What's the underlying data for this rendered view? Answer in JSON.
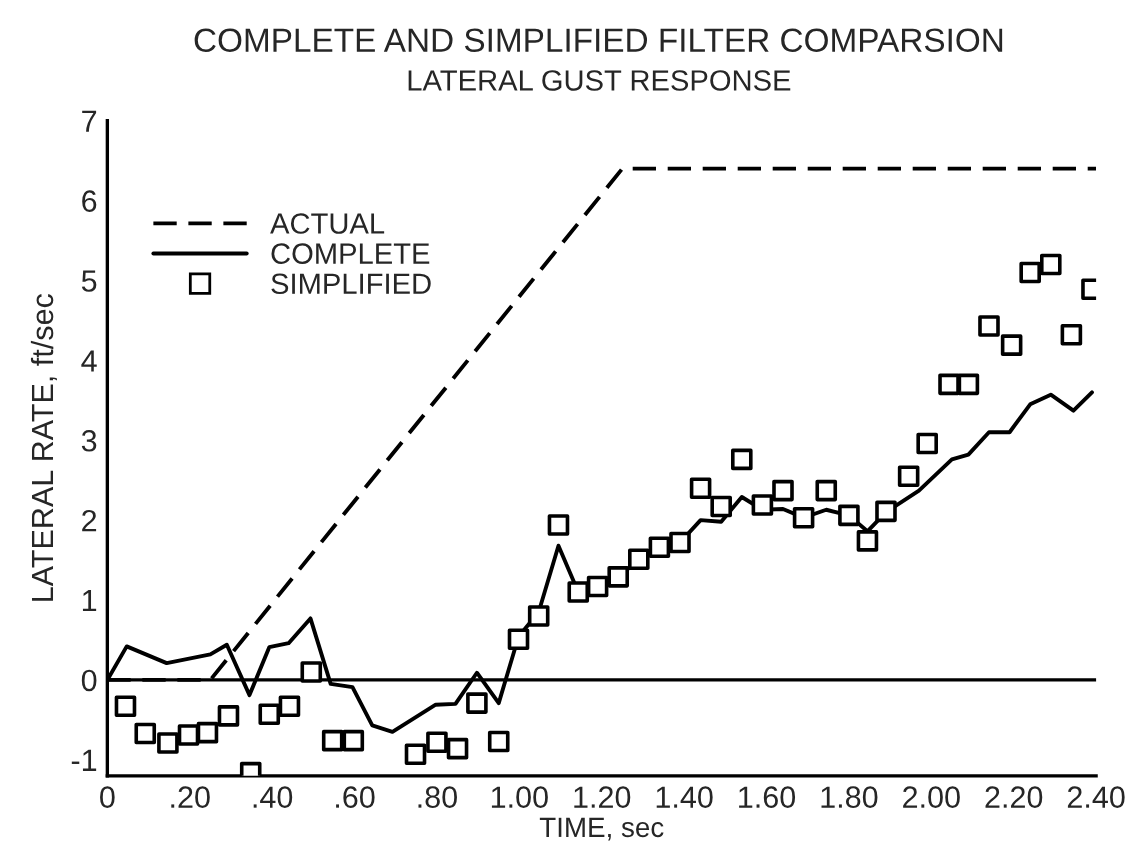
{
  "chart_data": {
    "type": "line",
    "title": "COMPLETE AND SIMPLIFIED FILTER COMPARSION",
    "subtitle": "LATERAL GUST RESPONSE",
    "xlabel": "TIME, sec",
    "ylabel": "LATERAL RATE, ft/sec",
    "xlim": [
      0,
      2.4
    ],
    "ylim": [
      -1.2,
      7
    ],
    "xticks": [
      0,
      {
        "value": 0.2,
        "label": ".20"
      },
      {
        "value": 0.4,
        "label": ".40"
      },
      {
        "value": 0.6,
        "label": ".60"
      },
      {
        "value": 0.8,
        "label": ".80"
      },
      {
        "value": 1.0,
        "label": "1.00"
      },
      {
        "value": 1.2,
        "label": "1.20"
      },
      {
        "value": 1.4,
        "label": "1.40"
      },
      {
        "value": 1.6,
        "label": "1.60"
      },
      {
        "value": 1.8,
        "label": "1.80"
      },
      {
        "value": 2.0,
        "label": "2.00"
      },
      {
        "value": 2.2,
        "label": "2.20"
      },
      {
        "value": 2.4,
        "label": "2.40"
      }
    ],
    "yticks": [
      -1,
      0,
      1,
      2,
      3,
      4,
      5,
      6,
      7
    ],
    "grid": false,
    "legend": "top left",
    "ref_lines": [
      {
        "axis": "y",
        "value": 0,
        "color": "#000000",
        "line_style": "solid"
      }
    ],
    "series": [
      {
        "name": "ACTUAL",
        "color": "#000000",
        "line_style": "dashed",
        "marker": "none",
        "x": [
          0,
          0.25,
          1.25,
          2.4
        ],
        "values": [
          0,
          0,
          6.4,
          6.4
        ]
      },
      {
        "name": "COMPLETE",
        "color": "#000000",
        "line_style": "solid",
        "marker": "none",
        "x": [
          0,
          0.047,
          0.144,
          0.25,
          0.29,
          0.345,
          0.393,
          0.44,
          0.493,
          0.542,
          0.595,
          0.643,
          0.692,
          0.797,
          0.845,
          0.897,
          0.95,
          0.998,
          1.047,
          1.095,
          1.143,
          1.19,
          1.24,
          1.29,
          1.34,
          1.39,
          1.44,
          1.49,
          1.54,
          1.59,
          1.64,
          1.69,
          1.745,
          1.8,
          1.845,
          1.89,
          1.97,
          2.05,
          2.09,
          2.14,
          2.19,
          2.24,
          2.29,
          2.345,
          2.39
        ],
        "values": [
          0,
          0.42,
          0.21,
          0.32,
          0.44,
          -0.19,
          0.41,
          0.46,
          0.77,
          -0.05,
          -0.09,
          -0.57,
          -0.65,
          -0.31,
          -0.3,
          0.09,
          -0.29,
          0.54,
          0.85,
          1.68,
          1.1,
          1.17,
          1.29,
          1.5,
          1.66,
          1.72,
          2.0,
          1.98,
          2.29,
          2.13,
          2.14,
          2.03,
          2.13,
          2.06,
          1.86,
          2.1,
          2.37,
          2.76,
          2.82,
          3.1,
          3.1,
          3.45,
          3.57,
          3.37,
          3.6
        ]
      },
      {
        "name": "SIMPLIFIED",
        "type": "scatter",
        "color": "#000000",
        "marker": "square",
        "x": [
          0.044,
          0.092,
          0.147,
          0.197,
          0.243,
          0.294,
          0.348,
          0.393,
          0.442,
          0.495,
          0.547,
          0.597,
          0.748,
          0.8,
          0.85,
          0.897,
          0.95,
          0.998,
          1.047,
          1.095,
          1.143,
          1.19,
          1.24,
          1.29,
          1.34,
          1.39,
          1.44,
          1.49,
          1.54,
          1.59,
          1.64,
          1.69,
          1.745,
          1.8,
          1.845,
          1.89,
          1.945,
          1.99,
          2.043,
          2.09,
          2.14,
          2.195,
          2.24,
          2.29,
          2.34,
          2.39
        ],
        "values": [
          -0.33,
          -0.67,
          -0.79,
          -0.69,
          -0.66,
          -0.45,
          -1.16,
          -0.43,
          -0.33,
          0.1,
          -0.76,
          -0.76,
          -0.93,
          -0.78,
          -0.86,
          -0.29,
          -0.77,
          0.51,
          0.8,
          1.94,
          1.1,
          1.17,
          1.29,
          1.51,
          1.66,
          1.72,
          2.4,
          2.17,
          2.76,
          2.19,
          2.37,
          2.03,
          2.37,
          2.06,
          1.74,
          2.11,
          2.55,
          2.96,
          3.7,
          3.7,
          4.43,
          4.19,
          5.1,
          5.2,
          4.32,
          4.89
        ]
      }
    ]
  }
}
